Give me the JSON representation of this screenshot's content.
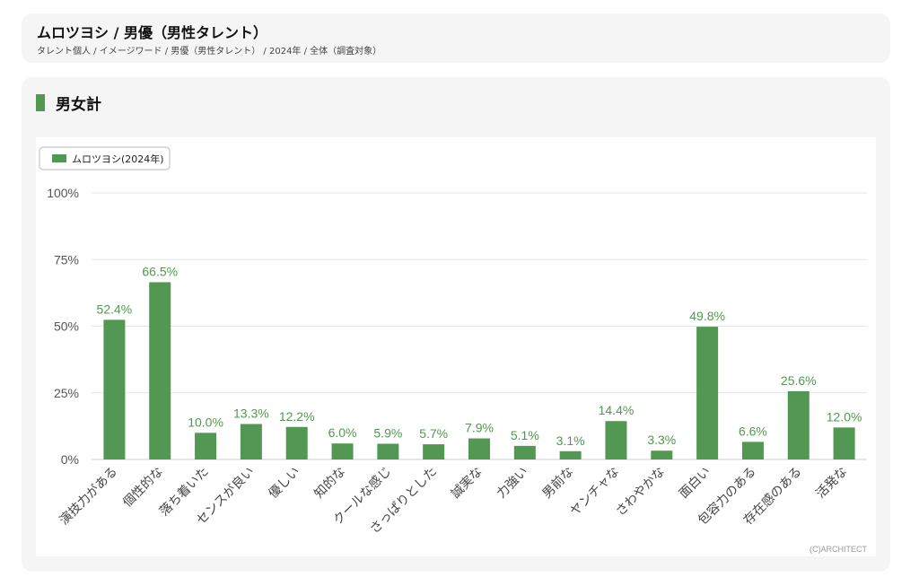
{
  "header": {
    "title": "ムロツヨシ / 男優（男性タレント）",
    "breadcrumb": "タレント個人 / イメージワード / 男優（男性タレント） / 2024年 / 全体（調査対象）"
  },
  "section": {
    "title": "男女計"
  },
  "colors": {
    "bar": "#529752",
    "label": "#529752",
    "grid": "#e4e4e4",
    "axis_text": "#555555"
  },
  "chart_data": {
    "type": "bar",
    "categories": [
      "演技力がある",
      "個性的な",
      "落ち着いた",
      "センスが良い",
      "優しい",
      "知的な",
      "クールな感じ",
      "さっぱりとした",
      "誠実な",
      "力強い",
      "男前な",
      "ヤンチャな",
      "さわやかな",
      "面白い",
      "包容力のある",
      "存在感のある",
      "活発な"
    ],
    "series": [
      {
        "name": "ムロツヨシ(2024年)",
        "values": [
          52.4,
          66.5,
          10.0,
          13.3,
          12.2,
          6.0,
          5.9,
          5.7,
          7.9,
          5.1,
          3.1,
          14.4,
          3.3,
          49.8,
          6.6,
          25.6,
          12.0
        ]
      }
    ],
    "ylim": [
      0,
      100
    ],
    "yticks": [
      "0%",
      "25%",
      "50%",
      "75%",
      "100%"
    ],
    "grid": true,
    "legend_position": "top-left",
    "value_format": "%",
    "credit": "(C)ARCHITECT"
  }
}
